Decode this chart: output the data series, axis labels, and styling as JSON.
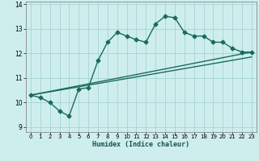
{
  "title": "",
  "xlabel": "Humidex (Indice chaleur)",
  "ylabel": "",
  "bg_color": "#ceeeed",
  "grid_color": "#aad8d8",
  "line_color": "#1a6b5a",
  "xlim": [
    -0.5,
    23.5
  ],
  "ylim": [
    8.8,
    14.1
  ],
  "xticks": [
    0,
    1,
    2,
    3,
    4,
    5,
    6,
    7,
    8,
    9,
    10,
    11,
    12,
    13,
    14,
    15,
    16,
    17,
    18,
    19,
    20,
    21,
    22,
    23
  ],
  "yticks": [
    9,
    10,
    11,
    12,
    13,
    14
  ],
  "main_x": [
    0,
    1,
    2,
    3,
    4,
    5,
    6,
    7,
    8,
    9,
    10,
    11,
    12,
    13,
    14,
    15,
    16,
    17,
    18,
    19,
    20,
    21,
    22,
    23
  ],
  "main_y": [
    10.3,
    10.2,
    10.0,
    9.65,
    9.45,
    10.55,
    10.6,
    11.7,
    12.45,
    12.85,
    12.7,
    12.55,
    12.45,
    13.2,
    13.5,
    13.45,
    12.85,
    12.7,
    12.7,
    12.45,
    12.45,
    12.2,
    12.05,
    12.05
  ],
  "line2_x": [
    0,
    23
  ],
  "line2_y": [
    10.3,
    12.05
  ],
  "line3_x": [
    0,
    23
  ],
  "line3_y": [
    10.3,
    11.85
  ],
  "marker_size": 2.5,
  "line_width": 1.0
}
